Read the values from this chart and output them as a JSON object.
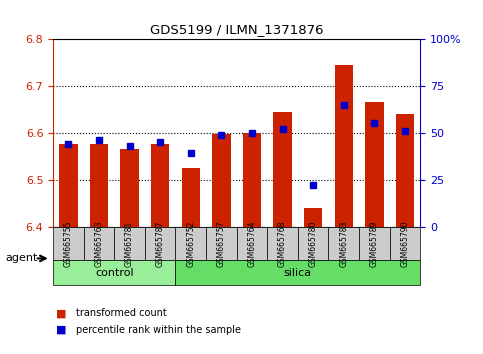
{
  "title": "GDS5199 / ILMN_1371876",
  "samples": [
    "GSM665755",
    "GSM665763",
    "GSM665781",
    "GSM665787",
    "GSM665752",
    "GSM665757",
    "GSM665764",
    "GSM665768",
    "GSM665780",
    "GSM665783",
    "GSM665789",
    "GSM665790"
  ],
  "groups": [
    "control",
    "control",
    "control",
    "control",
    "silica",
    "silica",
    "silica",
    "silica",
    "silica",
    "silica",
    "silica",
    "silica"
  ],
  "red_values": [
    6.575,
    6.575,
    6.565,
    6.575,
    6.525,
    6.597,
    6.6,
    6.645,
    6.44,
    6.745,
    6.665,
    6.64
  ],
  "blue_values_pct": [
    44,
    46,
    43,
    45,
    39,
    49,
    50,
    52,
    22,
    65,
    55,
    51
  ],
  "ylim_left": [
    6.4,
    6.8
  ],
  "ylim_right": [
    0,
    100
  ],
  "yticks_left": [
    6.4,
    6.5,
    6.6,
    6.7,
    6.8
  ],
  "yticks_right": [
    0,
    25,
    50,
    75,
    100
  ],
  "ytick_labels_right": [
    "0",
    "25",
    "50",
    "75",
    "100%"
  ],
  "bar_color": "#cc2200",
  "marker_color": "#0000cc",
  "bar_width": 0.6,
  "control_color": "#99ee99",
  "silica_color": "#66dd66",
  "sample_box_color": "#cccccc",
  "control_label": "control",
  "silica_label": "silica",
  "agent_label": "agent",
  "legend_red": "transformed count",
  "legend_blue": "percentile rank within the sample",
  "base_value": 6.4
}
